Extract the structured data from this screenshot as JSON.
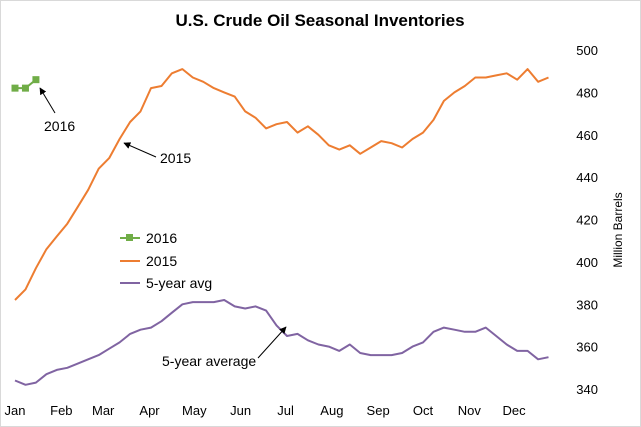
{
  "chart_data": {
    "type": "line",
    "title": "U.S. Crude Oil Seasonal Inventories",
    "ylabel": "Million Barrels",
    "ylim": [
      340,
      500
    ],
    "yticks": [
      340,
      360,
      380,
      400,
      420,
      440,
      460,
      480,
      500
    ],
    "y_axis_position": "right",
    "x_domain_weeks": [
      0,
      52
    ],
    "x_ticks": [
      {
        "label": "Jan",
        "week": 0
      },
      {
        "label": "Feb",
        "week": 4.43
      },
      {
        "label": "Mar",
        "week": 8.43
      },
      {
        "label": "Apr",
        "week": 12.86
      },
      {
        "label": "May",
        "week": 17.14
      },
      {
        "label": "Jun",
        "week": 21.57
      },
      {
        "label": "Jul",
        "week": 25.86
      },
      {
        "label": "Aug",
        "week": 30.29
      },
      {
        "label": "Sep",
        "week": 34.71
      },
      {
        "label": "Oct",
        "week": 39
      },
      {
        "label": "Nov",
        "week": 43.43
      },
      {
        "label": "Dec",
        "week": 47.71
      }
    ],
    "grid": false,
    "series": [
      {
        "name": "2016",
        "color": "#70ad47",
        "marker": "square",
        "x": [
          0,
          1,
          2
        ],
        "values": [
          482,
          482,
          486
        ]
      },
      {
        "name": "2015",
        "color": "#ed7d31",
        "x": [
          0,
          1,
          2,
          3,
          4,
          5,
          6,
          7,
          8,
          9,
          10,
          11,
          12,
          13,
          14,
          15,
          16,
          17,
          18,
          19,
          20,
          21,
          22,
          23,
          24,
          25,
          26,
          27,
          28,
          29,
          30,
          31,
          32,
          33,
          34,
          35,
          36,
          37,
          38,
          39,
          40,
          41,
          42,
          43,
          44,
          45,
          46,
          47,
          48,
          49,
          50,
          51
        ],
        "values": [
          382,
          387,
          397,
          406,
          412,
          418,
          426,
          434,
          444,
          449,
          458,
          466,
          471,
          482,
          483,
          489,
          491,
          487,
          485,
          482,
          480,
          478,
          471,
          468,
          463,
          465,
          466,
          461,
          464,
          460,
          455,
          453,
          455,
          451,
          454,
          457,
          456,
          454,
          458,
          461,
          467,
          476,
          480,
          483,
          487,
          487,
          488,
          489,
          486,
          491,
          485,
          487
        ]
      },
      {
        "name": "5-year avg",
        "color": "#8064a2",
        "x": [
          0,
          1,
          2,
          3,
          4,
          5,
          6,
          7,
          8,
          9,
          10,
          11,
          12,
          13,
          14,
          15,
          16,
          17,
          18,
          19,
          20,
          21,
          22,
          23,
          24,
          25,
          26,
          27,
          28,
          29,
          30,
          31,
          32,
          33,
          34,
          35,
          36,
          37,
          38,
          39,
          40,
          41,
          42,
          43,
          44,
          45,
          46,
          47,
          48,
          49,
          50,
          51
        ],
        "values": [
          344,
          342,
          343,
          347,
          349,
          350,
          352,
          354,
          356,
          359,
          362,
          366,
          368,
          369,
          372,
          376,
          380,
          381,
          381,
          381,
          382,
          379,
          378,
          379,
          377,
          370,
          365,
          366,
          363,
          361,
          360,
          358,
          361,
          357,
          356,
          356,
          356,
          357,
          360,
          362,
          367,
          369,
          368,
          367,
          367,
          369,
          365,
          361,
          358,
          358,
          354,
          355
        ]
      }
    ],
    "legend": {
      "placement": "center-left",
      "entries": [
        "2016",
        "2015",
        "5-year avg"
      ]
    },
    "annotations": [
      {
        "text": "2016",
        "target_series": "2016",
        "target_week": 1.3,
        "target_value": 484
      },
      {
        "text": "2015",
        "target_series": "2015",
        "target_week": 9.4,
        "target_value": 455
      },
      {
        "text": "5-year average",
        "target_series": "5-year avg",
        "target_week": 26,
        "target_value": 367
      }
    ]
  }
}
